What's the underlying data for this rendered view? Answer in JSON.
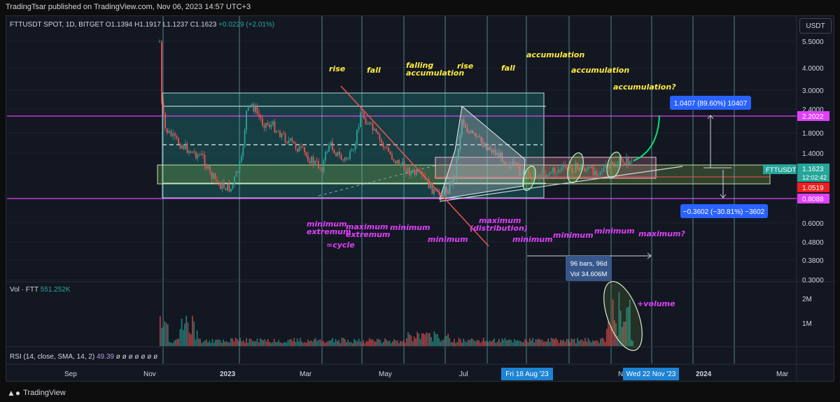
{
  "header": {
    "published": "TradingTsar published on TradingView.com, Nov 06, 2023 14:57 UTC+3"
  },
  "legend": {
    "symbol": "FTTUSDT SPOT, 1D, BITGET",
    "open": "O1.1394",
    "high": "H1.1917",
    "low": "L1.1237",
    "close": "C1.1623",
    "change": "+0.0229 (+2.01%)"
  },
  "unit_button": "USDT",
  "price_axis": {
    "ticks": [
      "5.5000",
      "4.0000",
      "3.0000",
      "2.4000",
      "1.8000",
      "1.4000",
      "0.6000",
      "0.4800",
      "0.3800",
      "0.3000"
    ],
    "badges": {
      "magenta_top": "2.2022",
      "ticker": "FTTUSDT",
      "last": "1.1623",
      "countdown": "12:02:42",
      "red": "1.0519",
      "magenta_bottom": "0.8088"
    }
  },
  "volume_pane": {
    "label": "Vol · FTT",
    "value": "551.252K",
    "ticks": [
      "2M",
      "1M"
    ]
  },
  "rsi_pane": {
    "label": "RSI (14, close, SMA, 14, 2)",
    "value": "49.39",
    "rest": "ø ø ø ø ø ø ø"
  },
  "time_axis": {
    "ticks": [
      "Sep",
      "Nov",
      "2023",
      "Mar",
      "May",
      "Jul",
      "N",
      "2024",
      "Mar"
    ],
    "highlight_left": "Fri 18 Aug '23",
    "highlight_right": "Wed 22 Nov '23"
  },
  "annotations": {
    "rise1": "rise",
    "fall1": "fall",
    "falling_acc_1": "falling",
    "falling_acc_2": "accumulation",
    "rise2": "rise",
    "fall2": "fall",
    "acc1": "accumulation",
    "acc2": "accumulation",
    "acc3": "accumulation?",
    "min_ext_1": "minimum",
    "min_ext_2": "extremum",
    "cycle": "=cycle",
    "max_ext_1": "maximum",
    "max_ext_2": "extremum",
    "minimum_a": "minimum",
    "minimum_b": "minimum",
    "max_dist_1": "maximum",
    "max_dist_2": "(distribution)",
    "minimum_c": "minimum",
    "minimum_d": "minimum",
    "minimum_e": "minimum",
    "maximum_q": "maximum?",
    "plus_volume": "+volume"
  },
  "measure_up": "1.0407 (89.60%) 10407",
  "measure_down": "−0.3602 (−30.81%) −3602",
  "bars_box": {
    "line1": "96 bars, 96d",
    "line2": "Vol 34.606M"
  },
  "footer": {
    "brand": "TradingView"
  },
  "colors": {
    "bg": "#131722",
    "up": "#26a69a",
    "down": "#ef5350",
    "magenta": "#e040fb",
    "annot_yellow": "#ffeb3b",
    "teal_box": "#1b5e5f",
    "measure_blue": "#2962ff"
  }
}
